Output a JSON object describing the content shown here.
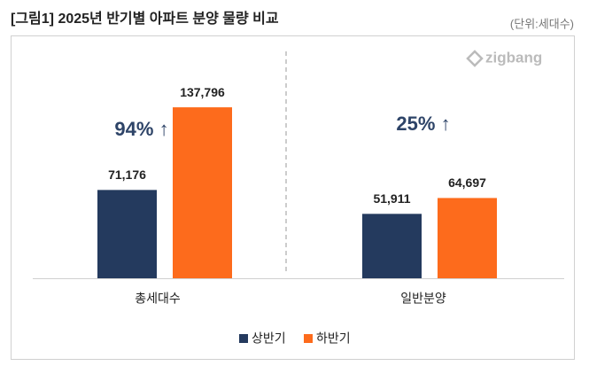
{
  "chart_data": {
    "type": "bar",
    "title": "[그림1] 2025년 반기별 아파트 분양 물량 비교",
    "subtitle": "(단위:세대수)",
    "logo": "zigbang",
    "annotations": [
      "94% ↑",
      "25% ↑"
    ],
    "categories": [
      "총세대수",
      "일반분양"
    ],
    "series": [
      {
        "name": "상반기",
        "color": "#243a5e",
        "values": [
          71176,
          51911
        ],
        "value_labels": [
          "71,176",
          "51,911"
        ]
      },
      {
        "name": "하반기",
        "color": "#fd6b1c",
        "values": [
          137796,
          64697
        ],
        "value_labels": [
          "137,796",
          "64,697"
        ]
      }
    ],
    "legend": "bottom"
  }
}
